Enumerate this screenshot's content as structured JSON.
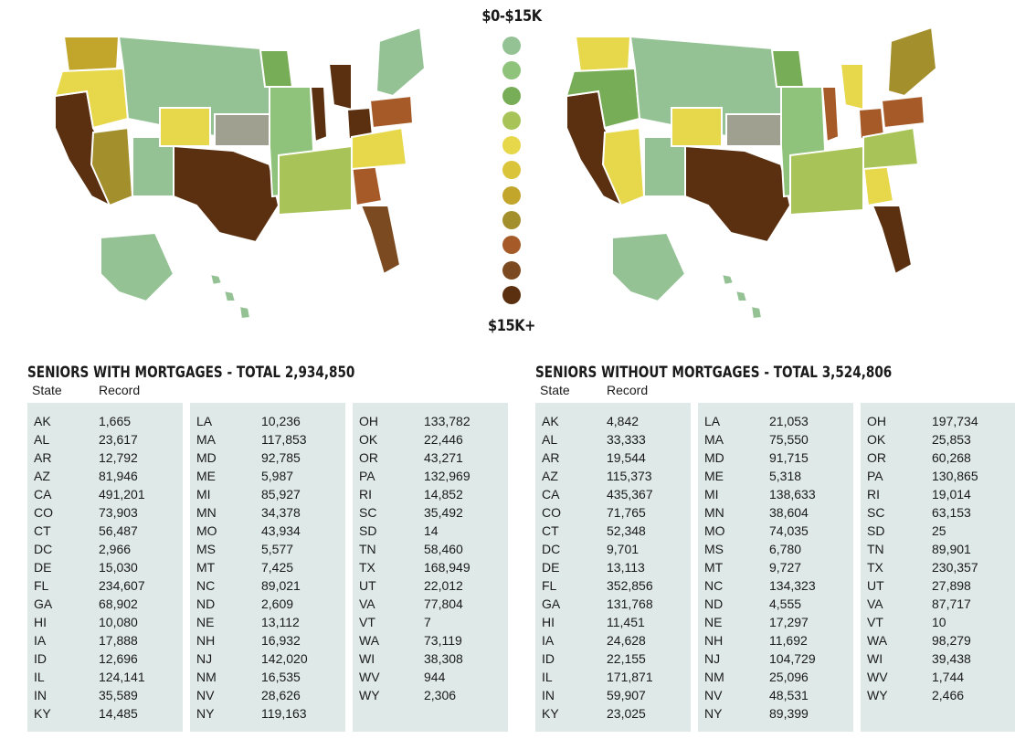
{
  "legend": {
    "top_label": "$0-$15K",
    "bottom_label": "$15K+",
    "colors": [
      "#94c294",
      "#8fc27a",
      "#78ad58",
      "#a8c458",
      "#e6d84a",
      "#d9c43a",
      "#c2a62c",
      "#a38f2c",
      "#a55a28",
      "#7c4a20",
      "#5a3010"
    ]
  },
  "maps": {
    "with": {
      "shape_colors": {
        "west": "#5a3010",
        "wa": "#c2a62c",
        "nw": "#e6d84a",
        "northern": "#94c294",
        "az": "#a38f2c",
        "nm": "#94c294",
        "co": "#e6d84a",
        "ks": "#a0a090",
        "tx": "#5a3010",
        "midwest": "#8fc27a",
        "mn": "#78ad58",
        "il": "#5a3010",
        "mi": "#5a3010",
        "oh": "#5a3010",
        "south": "#a8c458",
        "ga": "#a55a28",
        "fl": "#7c4a20",
        "east": "#e6d84a",
        "pa": "#a55a28",
        "ne": "#94c294",
        "ak": "#94c294",
        "hi": "#94c294"
      }
    },
    "without": {
      "shape_colors": {
        "west": "#5a3010",
        "wa": "#e6d84a",
        "nw": "#78ad58",
        "northern": "#94c294",
        "az": "#e6d84a",
        "nm": "#94c294",
        "co": "#e6d84a",
        "ks": "#a0a090",
        "tx": "#5a3010",
        "midwest": "#8fc27a",
        "mn": "#78ad58",
        "il": "#a55a28",
        "mi": "#e6d84a",
        "oh": "#a55a28",
        "south": "#a8c458",
        "ga": "#e6d84a",
        "fl": "#5a3010",
        "east": "#a8c458",
        "pa": "#a55a28",
        "ne": "#a38f2c",
        "ak": "#94c294",
        "hi": "#94c294"
      }
    }
  },
  "with_mortgages": {
    "title": "SENIORS WITH MORTGAGES - TOTAL 2,934,850",
    "col_state": "State",
    "col_record": "Record",
    "columns": [
      [
        [
          "AK",
          "1,665"
        ],
        [
          "AL",
          "23,617"
        ],
        [
          "AR",
          "12,792"
        ],
        [
          "AZ",
          "81,946"
        ],
        [
          "CA",
          "491,201"
        ],
        [
          "CO",
          "73,903"
        ],
        [
          "CT",
          "56,487"
        ],
        [
          "DC",
          "2,966"
        ],
        [
          "DE",
          "15,030"
        ],
        [
          "FL",
          "234,607"
        ],
        [
          "GA",
          "68,902"
        ],
        [
          "HI",
          "10,080"
        ],
        [
          "IA",
          "17,888"
        ],
        [
          "ID",
          "12,696"
        ],
        [
          "IL",
          "124,141"
        ],
        [
          "IN",
          "35,589"
        ],
        [
          "KY",
          "14,485"
        ]
      ],
      [
        [
          "LA",
          "10,236"
        ],
        [
          "MA",
          "117,853"
        ],
        [
          "MD",
          "92,785"
        ],
        [
          "ME",
          "5,987"
        ],
        [
          "MI",
          "85,927"
        ],
        [
          "MN",
          "34,378"
        ],
        [
          "MO",
          "43,934"
        ],
        [
          "MS",
          "5,577"
        ],
        [
          "MT",
          "7,425"
        ],
        [
          "NC",
          "89,021"
        ],
        [
          "ND",
          "2,609"
        ],
        [
          "NE",
          "13,112"
        ],
        [
          "NH",
          "16,932"
        ],
        [
          "NJ",
          "142,020"
        ],
        [
          "NM",
          "16,535"
        ],
        [
          "NV",
          "28,626"
        ],
        [
          "NY",
          "119,163"
        ]
      ],
      [
        [
          "OH",
          "133,782"
        ],
        [
          "OK",
          "22,446"
        ],
        [
          "OR",
          "43,271"
        ],
        [
          "PA",
          "132,969"
        ],
        [
          "RI",
          "14,852"
        ],
        [
          "SC",
          "35,492"
        ],
        [
          "SD",
          "14"
        ],
        [
          "TN",
          "58,460"
        ],
        [
          "TX",
          "168,949"
        ],
        [
          "UT",
          "22,012"
        ],
        [
          "VA",
          "77,804"
        ],
        [
          "VT",
          "7"
        ],
        [
          "WA",
          "73,119"
        ],
        [
          "WI",
          "38,308"
        ],
        [
          "WV",
          "944"
        ],
        [
          "WY",
          "2,306"
        ]
      ]
    ]
  },
  "without_mortgages": {
    "title": "SENIORS WITHOUT MORTGAGES - TOTAL 3,524,806",
    "col_state": "State",
    "col_record": "Record",
    "columns": [
      [
        [
          "AK",
          "4,842"
        ],
        [
          "AL",
          "33,333"
        ],
        [
          "AR",
          "19,544"
        ],
        [
          "AZ",
          "115,373"
        ],
        [
          "CA",
          "435,367"
        ],
        [
          "CO",
          "71,765"
        ],
        [
          "CT",
          "52,348"
        ],
        [
          "DC",
          "9,701"
        ],
        [
          "DE",
          "13,113"
        ],
        [
          "FL",
          "352,856"
        ],
        [
          "GA",
          "131,768"
        ],
        [
          "HI",
          "11,451"
        ],
        [
          "IA",
          "24,628"
        ],
        [
          "ID",
          "22,155"
        ],
        [
          "IL",
          "171,871"
        ],
        [
          "IN",
          "59,907"
        ],
        [
          "KY",
          "23,025"
        ]
      ],
      [
        [
          "LA",
          "21,053"
        ],
        [
          "MA",
          "75,550"
        ],
        [
          "MD",
          "91,715"
        ],
        [
          "ME",
          "5,318"
        ],
        [
          "MI",
          "138,633"
        ],
        [
          "MN",
          "38,604"
        ],
        [
          "MO",
          "74,035"
        ],
        [
          "MS",
          "6,780"
        ],
        [
          "MT",
          "9,727"
        ],
        [
          "NC",
          "134,323"
        ],
        [
          "ND",
          "4,555"
        ],
        [
          "NE",
          "17,297"
        ],
        [
          "NH",
          "11,692"
        ],
        [
          "NJ",
          "104,729"
        ],
        [
          "NM",
          "25,096"
        ],
        [
          "NV",
          "48,531"
        ],
        [
          "NY",
          "89,399"
        ]
      ],
      [
        [
          "OH",
          "197,734"
        ],
        [
          "OK",
          "25,853"
        ],
        [
          "OR",
          "60,268"
        ],
        [
          "PA",
          "130,865"
        ],
        [
          "RI",
          "19,014"
        ],
        [
          "SC",
          "63,153"
        ],
        [
          "SD",
          "25"
        ],
        [
          "TN",
          "89,901"
        ],
        [
          "TX",
          "230,357"
        ],
        [
          "UT",
          "27,898"
        ],
        [
          "VA",
          "87,717"
        ],
        [
          "VT",
          "10"
        ],
        [
          "WA",
          "98,279"
        ],
        [
          "WI",
          "39,438"
        ],
        [
          "WV",
          "1,744"
        ],
        [
          "WY",
          "2,466"
        ]
      ]
    ]
  }
}
